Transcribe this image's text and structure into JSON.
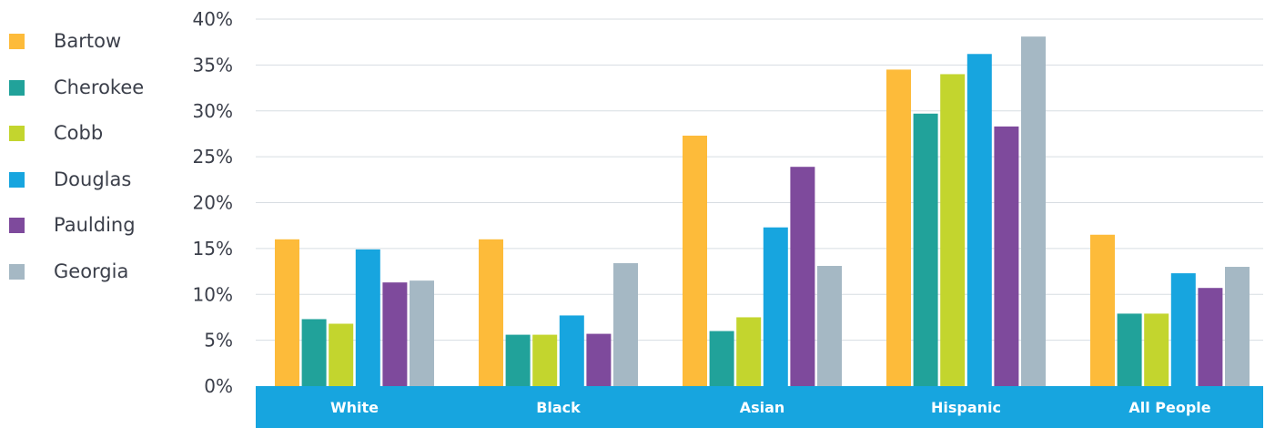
{
  "chart_data": {
    "type": "bar",
    "categories": [
      "White",
      "Black",
      "Asian",
      "Hispanic",
      "All People"
    ],
    "series": [
      {
        "name": "Bartow",
        "color": "#FDBB3A",
        "values": [
          16.0,
          16.0,
          27.3,
          34.5,
          16.5
        ]
      },
      {
        "name": "Cherokee",
        "color": "#21A29A",
        "values": [
          7.3,
          5.6,
          6.0,
          29.7,
          7.9
        ]
      },
      {
        "name": "Cobb",
        "color": "#C3D52E",
        "values": [
          6.8,
          5.6,
          7.5,
          34.0,
          7.9
        ]
      },
      {
        "name": "Douglas",
        "color": "#17A5DF",
        "values": [
          14.9,
          7.7,
          17.3,
          36.2,
          12.3
        ]
      },
      {
        "name": "Paulding",
        "color": "#7E4A9C",
        "values": [
          11.3,
          5.7,
          23.9,
          28.3,
          10.7
        ]
      },
      {
        "name": "Georgia",
        "color": "#A5B8C4",
        "values": [
          11.5,
          13.4,
          13.1,
          38.1,
          13.0
        ]
      }
    ],
    "yticks": [
      "0%",
      "5%",
      "10%",
      "15%",
      "20%",
      "25%",
      "30%",
      "35%",
      "40%"
    ],
    "ylim": [
      0,
      40
    ],
    "title": "",
    "xlabel": "",
    "ylabel": "",
    "grid": true,
    "legend_position": "left",
    "axis_band_color": "#17A5DF"
  }
}
